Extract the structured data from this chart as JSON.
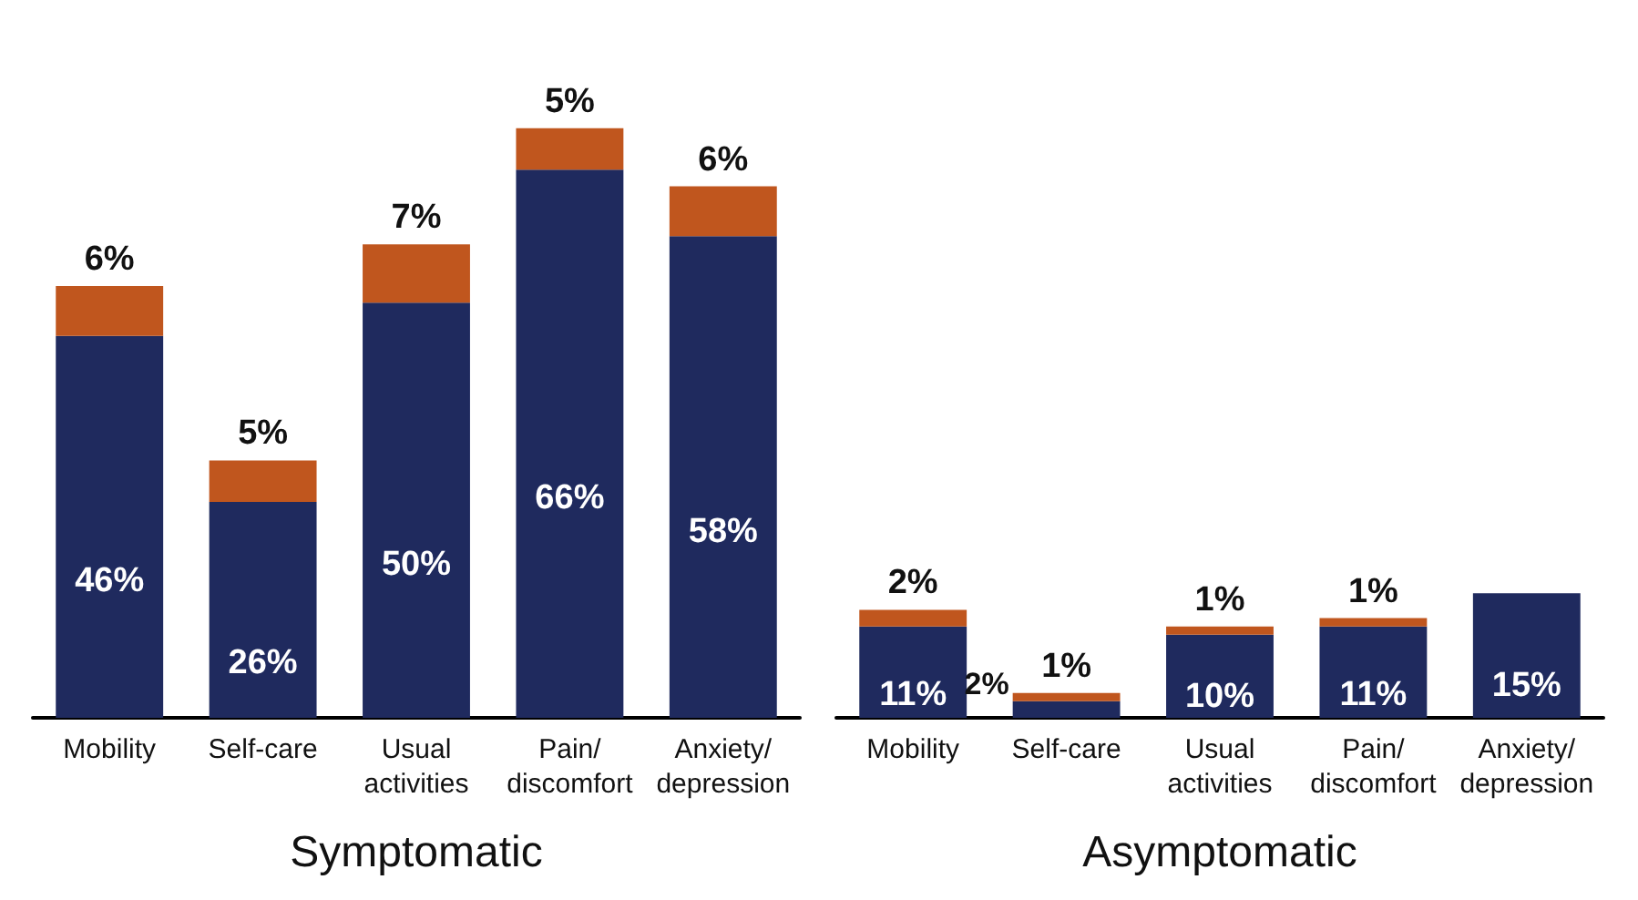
{
  "chart_data": [
    {
      "type": "bar",
      "stacked": true,
      "xlabel": "Symptomatic",
      "categories": [
        "Mobility",
        "Self-care",
        "Usual\nactivities",
        "Pain/\ndiscomfort",
        "Anxiety/\ndepression"
      ],
      "grid": false,
      "series": [
        {
          "color": "#1f2a5e",
          "values": [
            46,
            26,
            50,
            66,
            58
          ],
          "value_labels": [
            "46%",
            "26%",
            "50%",
            "66%",
            "58%"
          ]
        },
        {
          "color": "#c0561e",
          "values": [
            6,
            5,
            7,
            5,
            6
          ],
          "value_labels": [
            "6%",
            "5%",
            "7%",
            "5%",
            "6%"
          ]
        }
      ]
    },
    {
      "type": "bar",
      "stacked": true,
      "xlabel": "Asymptomatic",
      "categories": [
        "Mobility",
        "Self-care",
        "Usual\nactivities",
        "Pain/\ndiscomfort",
        "Anxiety/\ndepression"
      ],
      "grid": false,
      "series": [
        {
          "color": "#1f2a5e",
          "values": [
            11,
            2,
            10,
            11,
            15
          ],
          "value_labels": [
            "11%",
            "2%",
            "10%",
            "11%",
            "15%"
          ]
        },
        {
          "color": "#c0561e",
          "values": [
            2,
            1,
            1,
            1,
            null
          ],
          "value_labels": [
            "2%",
            "1%",
            "1%",
            "1%",
            null
          ]
        }
      ]
    }
  ]
}
